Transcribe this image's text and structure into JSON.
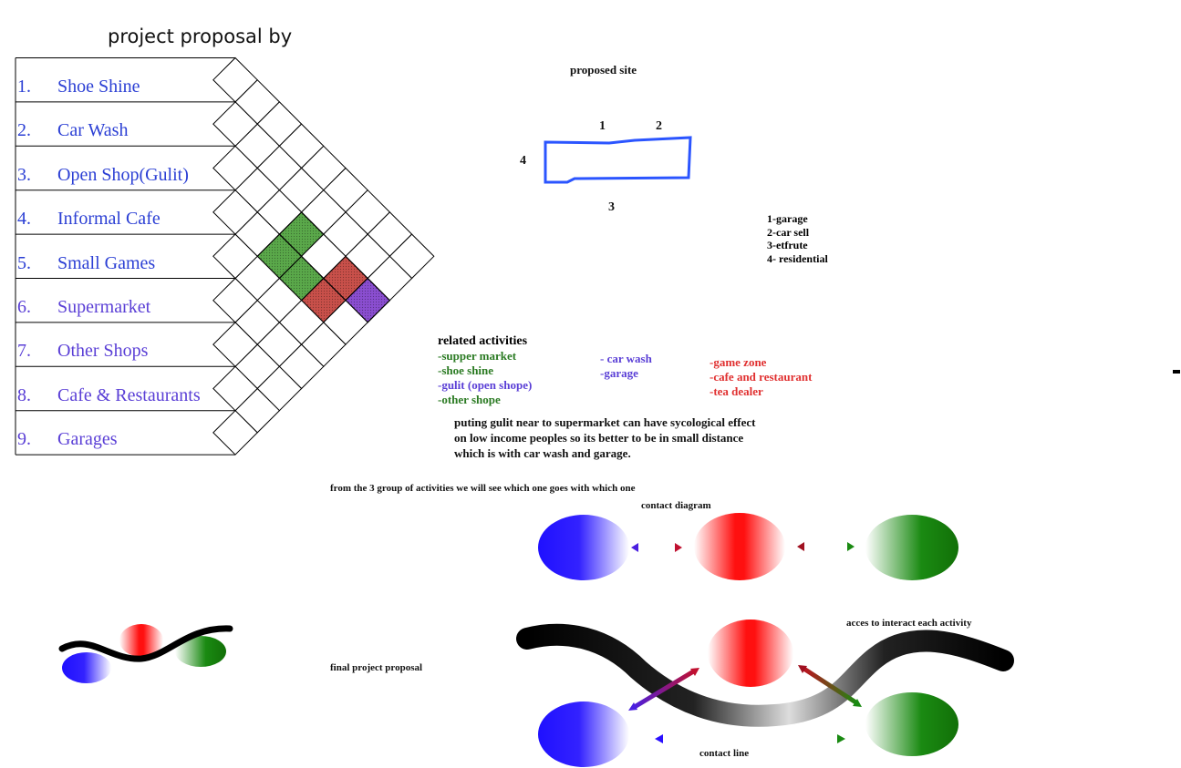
{
  "title": "project proposal by",
  "activities": [
    {
      "num": "1.",
      "label": "Shoe Shine"
    },
    {
      "num": "2.",
      "label": "Car Wash"
    },
    {
      "num": "3.",
      "label": "Open Shop(Gulit)"
    },
    {
      "num": "4.",
      "label": "Informal Cafe"
    },
    {
      "num": "5.",
      "label": "Small Games"
    },
    {
      "num": "6.",
      "label": "Supermarket"
    },
    {
      "num": "7.",
      "label": "Other Shops"
    },
    {
      "num": "8.",
      "label": "Cafe & Restaurants"
    },
    {
      "num": "9.",
      "label": "Garages"
    }
  ],
  "site": {
    "title": "proposed site",
    "side_labels": [
      "1",
      "2",
      "3",
      "4"
    ],
    "legend": [
      "1-garage",
      "2-car sell",
      "3-etfrute",
      "4- residential"
    ]
  },
  "related": {
    "title": "related activities",
    "group_green": [
      "-supper market",
      "-shoe shine",
      "-gulit (open shope)",
      "-other shope"
    ],
    "group_blue": [
      "- car wash",
      "-garage"
    ],
    "group_red": [
      "-game zone",
      "-cafe and restaurant",
      "-tea dealer"
    ],
    "note": [
      "puting gulit near to supermarket can have sycological effect",
      "on low income peoples so its better to be in small distance",
      "which is with car wash and garage."
    ]
  },
  "groups_caption": "from the 3 group of activities we will see which one goes with which one",
  "contact_diagram_title": "contact diagram",
  "final_proposal_label": "final project proposal",
  "access_label": "acces to interact each activity",
  "contact_line_label": "contact line",
  "colors": {
    "blue": "#1f10ff",
    "red": "#ff1010",
    "green": "#1a8a12",
    "grid_green": "#5aa84a",
    "grid_red": "#c8504a",
    "grid_purple": "#8a4ed0",
    "site_outline": "#2b55ff"
  }
}
